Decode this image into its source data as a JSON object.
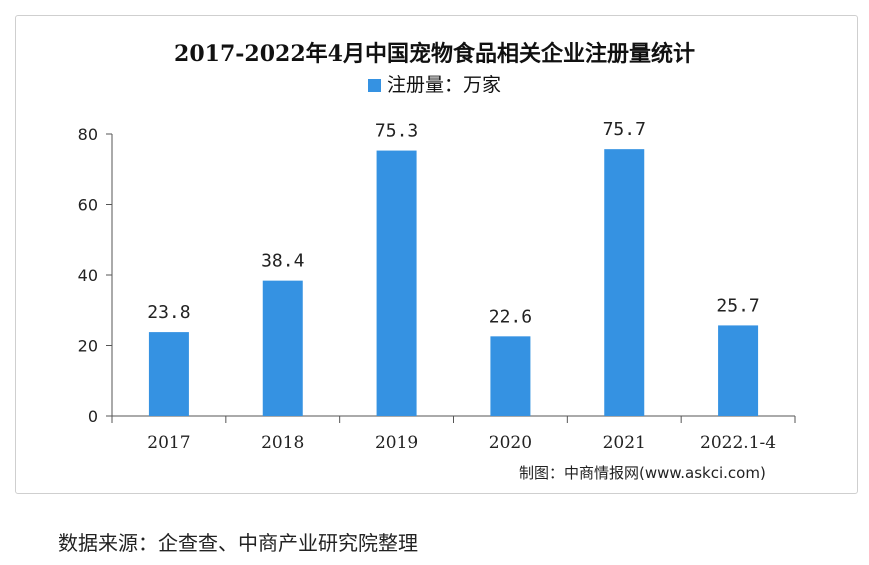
{
  "chart_data": {
    "type": "bar",
    "title": "2017-2022年4月中国宠物食品相关企业注册量统计",
    "categories": [
      "2017",
      "2018",
      "2019",
      "2020",
      "2021",
      "2022.1-4"
    ],
    "series": [
      {
        "name": "注册量：万家",
        "values": [
          23.8,
          38.4,
          75.3,
          22.6,
          75.7,
          25.7
        ]
      }
    ],
    "data_labels": [
      "23.8",
      "38.4",
      "75.3",
      "22.6",
      "75.7",
      "25.7"
    ],
    "ylim": [
      0,
      80
    ],
    "yticks": [
      0,
      20,
      40,
      60,
      80
    ],
    "grid": false,
    "legend_position": "top-center",
    "bar_color": "#3592e2"
  },
  "source_note": "制图：中商情报网(www.askci.com)",
  "footer_text": "数据来源：企查查、中商产业研究院整理"
}
